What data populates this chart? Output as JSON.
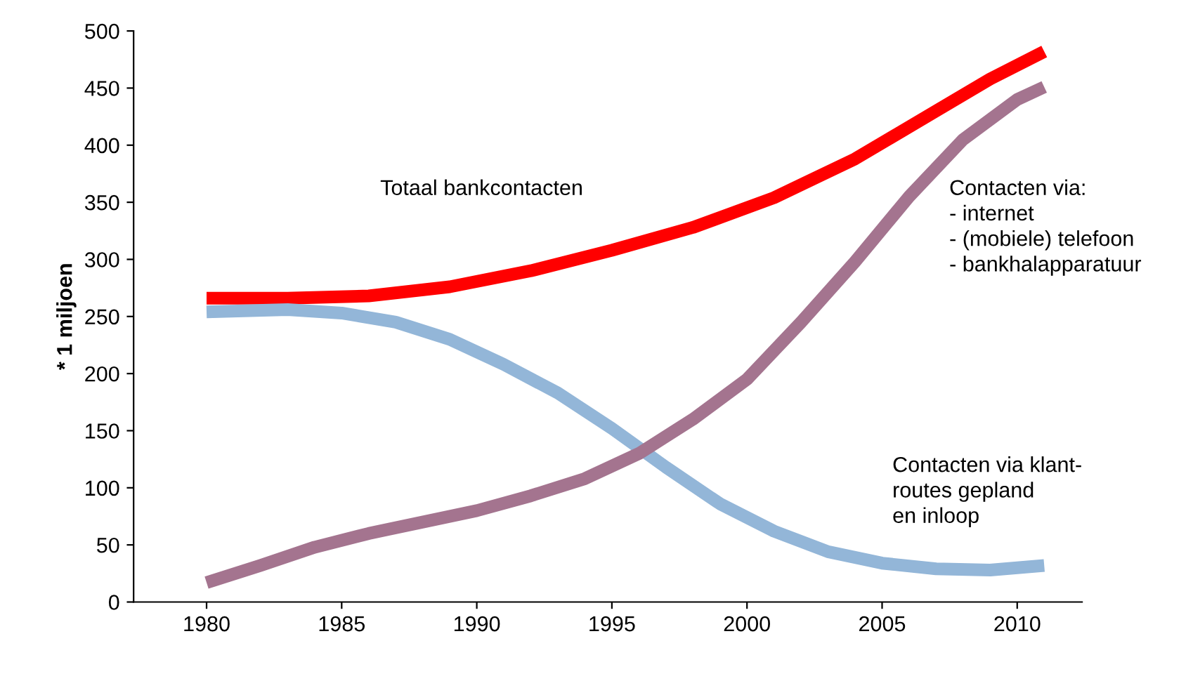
{
  "chart_data": {
    "type": "line",
    "ylabel": "* 1 miljoen",
    "xlim": [
      1977.3,
      2012.4
    ],
    "ylim": [
      0,
      500
    ],
    "xticks": [
      1980,
      1985,
      1990,
      1995,
      2000,
      2005,
      2010
    ],
    "yticks": [
      0,
      50,
      100,
      150,
      200,
      250,
      300,
      350,
      400,
      450,
      500
    ],
    "grid": false,
    "legend": false,
    "marker": "none",
    "line_style": "solid",
    "series": [
      {
        "color": "#ff0000",
        "x": [
          1980,
          1983,
          1986,
          1989,
          1992,
          1995,
          1998,
          2001,
          2004,
          2007,
          2009,
          2011
        ],
        "values": [
          266,
          266,
          268,
          276,
          290,
          308,
          328,
          354,
          388,
          430,
          458,
          482
        ]
      },
      {
        "color": "#93b6d8",
        "x": [
          1980,
          1983,
          1985,
          1987,
          1989,
          1991,
          1993,
          1995,
          1997,
          1999,
          2001,
          2003,
          2005,
          2007,
          2009,
          2011
        ],
        "values": [
          254,
          256,
          253,
          245,
          230,
          208,
          183,
          152,
          118,
          86,
          62,
          44,
          34,
          29,
          28,
          32
        ]
      },
      {
        "color": "#a4748f",
        "x": [
          1980,
          1982,
          1984,
          1986,
          1988,
          1990,
          1992,
          1994,
          1996,
          1998,
          2000,
          2002,
          2004,
          2006,
          2008,
          2010,
          2011
        ],
        "values": [
          17,
          32,
          48,
          60,
          70,
          80,
          93,
          108,
          130,
          160,
          195,
          245,
          298,
          355,
          405,
          440,
          451
        ]
      }
    ],
    "annotations": [
      "Totaal bankcontacten",
      "Contacten via:\n- internet\n- (mobiele) telefoon\n- bankhalapparatuur",
      "Contacten via klant-\nroutes gepland\nen inloop"
    ]
  }
}
